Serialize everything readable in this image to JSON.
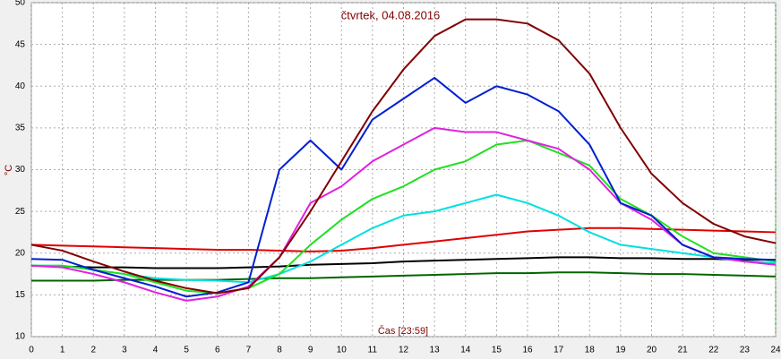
{
  "chart_data": {
    "type": "line",
    "title": "čtvrtek, 04.08.2016",
    "ylabel": "°C",
    "xlabel": "Čas [23:59]",
    "x": [
      0,
      1,
      2,
      3,
      4,
      5,
      6,
      7,
      8,
      9,
      10,
      11,
      12,
      13,
      14,
      15,
      16,
      17,
      18,
      19,
      20,
      21,
      22,
      23,
      24
    ],
    "xlim": [
      0,
      24
    ],
    "xticks": [
      0,
      1,
      2,
      3,
      4,
      5,
      6,
      7,
      8,
      9,
      10,
      11,
      12,
      13,
      14,
      15,
      16,
      17,
      18,
      19,
      20,
      21,
      22,
      23,
      24
    ],
    "ylim": [
      10,
      50
    ],
    "yticks": [
      10,
      15,
      20,
      25,
      30,
      35,
      40,
      45,
      50
    ],
    "grid": true,
    "series": [
      {
        "color": "#006400",
        "values": [
          16.7,
          16.7,
          16.7,
          16.8,
          16.8,
          16.8,
          16.8,
          16.9,
          17,
          17,
          17.1,
          17.2,
          17.3,
          17.4,
          17.5,
          17.6,
          17.6,
          17.7,
          17.7,
          17.6,
          17.5,
          17.5,
          17.4,
          17.3,
          17.2
        ]
      },
      {
        "color": "#000000",
        "values": [
          18.5,
          18.4,
          18.3,
          18.3,
          18.2,
          18.2,
          18.2,
          18.3,
          18.4,
          18.6,
          18.7,
          18.8,
          19,
          19.1,
          19.2,
          19.3,
          19.4,
          19.5,
          19.5,
          19.4,
          19.4,
          19.3,
          19.3,
          19.2,
          19.2
        ]
      },
      {
        "color": "#e00000",
        "values": [
          21,
          20.9,
          20.8,
          20.7,
          20.6,
          20.5,
          20.4,
          20.4,
          20.3,
          20.2,
          20.3,
          20.6,
          21,
          21.4,
          21.8,
          22.2,
          22.6,
          22.8,
          23,
          23,
          22.9,
          22.8,
          22.7,
          22.6,
          22.5
        ]
      },
      {
        "color": "#00e0e0",
        "values": [
          18.5,
          18.5,
          18,
          17.5,
          17,
          16.8,
          16.7,
          16.5,
          17.5,
          19,
          21,
          23,
          24.5,
          25,
          26,
          27,
          26,
          24.5,
          22.5,
          21,
          20.5,
          20,
          19.5,
          19,
          18.8
        ]
      },
      {
        "color": "#20e020",
        "values": [
          18.5,
          18.5,
          18,
          17.5,
          16.5,
          15.5,
          15.2,
          15.8,
          17.5,
          21,
          24,
          26.5,
          28,
          30,
          31,
          33,
          33.5,
          32,
          30.5,
          26.5,
          24.5,
          22,
          20,
          19.5,
          19
        ]
      },
      {
        "color": "#e020e0",
        "values": [
          18.5,
          18.3,
          17.5,
          16.5,
          15.3,
          14.3,
          14.8,
          16,
          19.5,
          26,
          28,
          31,
          33,
          35,
          34.5,
          34.5,
          33.5,
          32.5,
          30,
          26,
          24,
          21,
          19.5,
          19,
          18.6
        ]
      },
      {
        "color": "#0020d0",
        "values": [
          19.3,
          19.2,
          18,
          17,
          16,
          14.8,
          15.3,
          16.5,
          30,
          33.5,
          30,
          36,
          38.5,
          41,
          38,
          40,
          39,
          37,
          33,
          26,
          24.5,
          21,
          19.5,
          19.3,
          19.2
        ]
      },
      {
        "color": "#800000",
        "values": [
          21,
          20.3,
          19,
          17.8,
          16.7,
          15.8,
          15.2,
          15.8,
          19.5,
          25,
          31,
          37,
          42,
          46,
          48,
          48,
          47.5,
          45.5,
          41.5,
          35,
          29.5,
          26,
          23.5,
          22,
          21.2
        ]
      }
    ]
  }
}
